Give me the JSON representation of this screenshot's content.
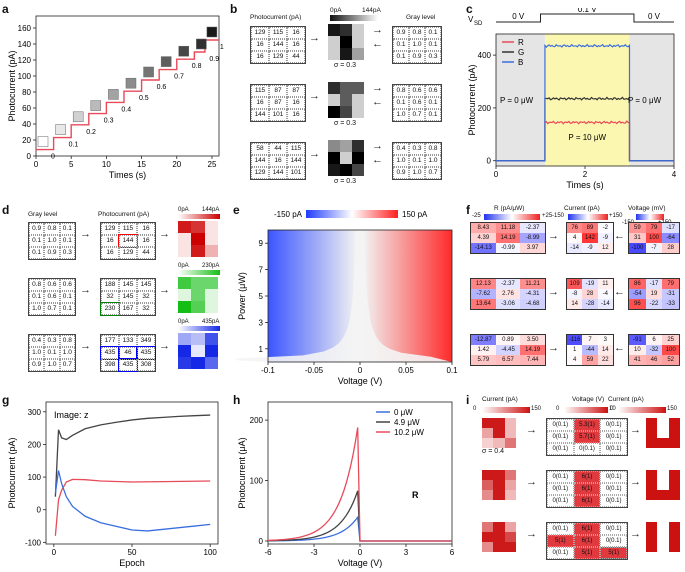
{
  "panels": {
    "a": {
      "label": "a",
      "chart_data": {
        "type": "line",
        "xlabel": "Times (s)",
        "ylabel": "Photocurrent (pA)",
        "xlim": [
          0,
          26
        ],
        "ylim": [
          0,
          175
        ],
        "xticks": [
          0,
          5,
          10,
          15,
          20,
          25
        ],
        "yticks": [
          0,
          20,
          40,
          60,
          80,
          100,
          120,
          140,
          160
        ],
        "steps": [
          {
            "t0": 0,
            "t1": 2.5,
            "y": 8,
            "label": "0"
          },
          {
            "t0": 2.5,
            "t1": 5,
            "y": 23,
            "label": "0.1"
          },
          {
            "t0": 5,
            "t1": 7.5,
            "y": 39,
            "label": "0.2"
          },
          {
            "t0": 7.5,
            "t1": 10,
            "y": 53,
            "label": "0.3"
          },
          {
            "t0": 10,
            "t1": 12.5,
            "y": 67,
            "label": "0.4"
          },
          {
            "t0": 12.5,
            "t1": 15,
            "y": 81,
            "label": "0.5"
          },
          {
            "t0": 15,
            "t1": 17.5,
            "y": 95,
            "label": "0.6"
          },
          {
            "t0": 17.5,
            "t1": 20,
            "y": 108,
            "label": "0.7"
          },
          {
            "t0": 20,
            "t1": 22.5,
            "y": 121,
            "label": "0.8"
          },
          {
            "t0": 22.5,
            "t1": 24,
            "y": 130,
            "label": "0.9"
          },
          {
            "t0": 24,
            "t1": 26,
            "y": 145,
            "label": "1"
          }
        ],
        "color": "#e84a5a"
      }
    },
    "b": {
      "label": "b",
      "col_photocurrent": "Photocurrent (pA)",
      "col_gray": "Gray level",
      "cb_min": "0pA",
      "cb_max": "144pA",
      "sigma": "σ = 0.3",
      "rows": [
        {
          "pc": [
            "129",
            "115",
            "16",
            "16",
            "144",
            "16",
            "16",
            "129",
            "44"
          ],
          "gl": [
            "0.9",
            "0.8",
            "0.1",
            "0.1",
            "1.0",
            "0.1",
            "0.1",
            "0.9",
            "0.3"
          ]
        },
        {
          "pc": [
            "115",
            "87",
            "87",
            "16",
            "87",
            "16",
            "144",
            "101",
            "16"
          ],
          "gl": [
            "0.8",
            "0.6",
            "0.6",
            "0.1",
            "0.6",
            "0.1",
            "1.0",
            "0.7",
            "0.1"
          ]
        },
        {
          "pc": [
            "58",
            "44",
            "115",
            "144",
            "16",
            "144",
            "129",
            "144",
            "101"
          ],
          "gl": [
            "0.4",
            "0.3",
            "0.8",
            "1.0",
            "0.1",
            "1.0",
            "0.9",
            "1.0",
            "0.7"
          ]
        }
      ]
    },
    "c": {
      "label": "c",
      "vsd_label": "V",
      "vsd_sub": "SD",
      "v_left": "0 V",
      "v_mid": "0.1 V",
      "v_right": "0 V",
      "p_off_left": "P = 0 μW",
      "p_off_right": "P = 0 μW",
      "p_on": "P = 10 μW",
      "chart_data": {
        "type": "line",
        "xlabel": "Times (s)",
        "ylabel": "Photocurrent (pA)",
        "xlim": [
          0,
          4
        ],
        "ylim": [
          -20,
          480
        ],
        "xticks": [
          0,
          2,
          4
        ],
        "yticks": [
          0,
          200,
          400
        ],
        "on_window": [
          1.1,
          3.0
        ],
        "series": [
          {
            "name": "R",
            "color": "#e84a5a",
            "on_value": 145
          },
          {
            "name": "G",
            "color": "#333333",
            "on_value": 235
          },
          {
            "name": "B",
            "color": "#3a6fe0",
            "on_value": 435
          }
        ]
      }
    },
    "d": {
      "label": "d",
      "col_gray": "Gray level",
      "col_pc": "Photocurrent (pA)",
      "rows": [
        {
          "gl": [
            "0.9",
            "0.8",
            "0.1",
            "0.1",
            "1.0",
            "0.1",
            "0.1",
            "0.9",
            "0.3"
          ],
          "pc": [
            "129",
            "115",
            "16",
            "16",
            "144",
            "16",
            "16",
            "129",
            "44"
          ],
          "cb_min": "0pA",
          "cb_max": "144pA"
        },
        {
          "gl": [
            "0.8",
            "0.6",
            "0.6",
            "0.1",
            "0.6",
            "0.1",
            "1.0",
            "0.7",
            "0.1"
          ],
          "pc": [
            "188",
            "145",
            "145",
            "32",
            "145",
            "32",
            "230",
            "167",
            "32"
          ],
          "cb_min": "0pA",
          "cb_max": "230pA"
        },
        {
          "gl": [
            "0.4",
            "0.3",
            "0.8",
            "1.0",
            "0.1",
            "1.0",
            "0.9",
            "1.0",
            "0.7"
          ],
          "pc": [
            "177",
            "133",
            "349",
            "435",
            "46",
            "435",
            "398",
            "435",
            "308"
          ],
          "cb_min": "0pA",
          "cb_max": "435pA"
        }
      ]
    },
    "e": {
      "label": "e",
      "cb_left": "-150 pA",
      "cb_right": "150 pA",
      "chart_data": {
        "type": "heatmap",
        "xlabel": "Voltage (V)",
        "ylabel": "Power (μW)",
        "xlim": [
          -0.1,
          0.1
        ],
        "ylim": [
          0,
          10
        ],
        "xticks": [
          "-0.1",
          "-0.05",
          "0",
          "0.05",
          "0.1"
        ],
        "yticks": [
          "1",
          "3",
          "5",
          "7",
          "9"
        ],
        "zlim": [
          -150,
          150
        ]
      }
    },
    "f": {
      "label": "f",
      "r_title": "R (pA/μW)",
      "r_min": "-25",
      "r_max": "+25",
      "i_title": "Current (pA)",
      "i_min": "-150",
      "i_max": "+150",
      "v_title": "Voltage (mV)",
      "v_min": "-150",
      "v_max": "+150",
      "rows": [
        {
          "r": [
            "8.43",
            "11.18",
            "-2.37",
            "4.39",
            "14.19",
            "-8.99",
            "-14.13",
            "-0.99",
            "3.97"
          ],
          "i": [
            "76",
            "89",
            "-2",
            "4",
            "142",
            "-9",
            "-14",
            "-9",
            "12"
          ],
          "v": [
            "59",
            "79",
            "-17",
            "31",
            "100",
            "-64",
            "-100",
            "-7",
            "28"
          ]
        },
        {
          "r": [
            "12.13",
            "-2.37",
            "11.21",
            "-7.62",
            "2.76",
            "-4.31",
            "13.64",
            "-3.06",
            "-4.68"
          ],
          "i": [
            "109",
            "-19",
            "11",
            "-8",
            "28",
            "-4",
            "14",
            "-28",
            "-14"
          ],
          "v": [
            "86",
            "-17",
            "79",
            "-54",
            "19",
            "-31",
            "96",
            "-22",
            "-33"
          ]
        },
        {
          "r": [
            "-12.87",
            "0.89",
            "3.50",
            "1.42",
            "-4.45",
            "14.19",
            "5.79",
            "6.57",
            "7.44"
          ],
          "i": [
            "-116",
            "7",
            "3",
            "1",
            "-44",
            "14",
            "4",
            "59",
            "22"
          ],
          "v": [
            "-91",
            "6",
            "25",
            "10",
            "-32",
            "100",
            "41",
            "46",
            "52"
          ]
        }
      ]
    },
    "g": {
      "label": "g",
      "annotation": "Image: z",
      "chart_data": {
        "type": "line",
        "xlabel": "Epoch",
        "ylabel": "Photocurrent (pA)",
        "xlim": [
          -5,
          105
        ],
        "ylim": [
          -105,
          330
        ],
        "xticks": [
          0,
          50,
          100
        ],
        "yticks": [
          -100,
          0,
          100,
          200,
          300
        ],
        "series": [
          {
            "name": "black",
            "color": "#444444",
            "x": [
              1,
              3,
              5,
              8,
              12,
              20,
              30,
              40,
              50,
              60,
              70,
              80,
              90,
              100
            ],
            "y": [
              40,
              245,
              220,
              215,
              228,
              248,
              260,
              268,
              275,
              280,
              283,
              286,
              288,
              290
            ]
          },
          {
            "name": "red",
            "color": "#e84a5a",
            "x": [
              1,
              3,
              5,
              8,
              12,
              20,
              30,
              50,
              70,
              100
            ],
            "y": [
              -80,
              30,
              60,
              85,
              93,
              92,
              88,
              85,
              86,
              88
            ]
          },
          {
            "name": "blue",
            "color": "#3a6fe0",
            "x": [
              1,
              3,
              5,
              8,
              12,
              20,
              30,
              50,
              60,
              70,
              80,
              90,
              100
            ],
            "y": [
              50,
              120,
              80,
              40,
              10,
              -20,
              -40,
              -62,
              -65,
              -60,
              -55,
              -50,
              -45
            ]
          }
        ]
      }
    },
    "h": {
      "label": "h",
      "annotation": "R",
      "chart_data": {
        "type": "line",
        "xlabel": "Voltage (V)",
        "ylabel": "Photocurrent (μA)",
        "xlim": [
          -6,
          6
        ],
        "ylim": [
          -5,
          230
        ],
        "xticks": [
          -6,
          -3,
          0,
          3,
          6
        ],
        "yticks": [
          0,
          100,
          200
        ],
        "series": [
          {
            "name": "0 μW",
            "color": "#3a6fe0",
            "scale": 45
          },
          {
            "name": "4.9 μW",
            "color": "#444444",
            "scale": 95
          },
          {
            "name": "10.2 μW",
            "color": "#e84a5a",
            "scale": 215
          }
        ]
      }
    },
    "i": {
      "label": "i",
      "c_title": "Current (pA)",
      "c_min": "0",
      "c_max": "150",
      "v_title": "Voltage (V)",
      "v_min": "0",
      "v_max": "10",
      "sigma": "σ = 0.4",
      "rows": [
        {
          "v": [
            "0(0.1)",
            "5.3(1)",
            "0(0.1)",
            "0(0.1)",
            "5.7(1)",
            "0(0.1)",
            "0(0.1)",
            "0(0.1)",
            "0(0.1)"
          ]
        },
        {
          "v": [
            "0(0.1)",
            "6(1)",
            "0(0.1)",
            "0(0.1)",
            "6(1)",
            "0(0.1)",
            "0(0.1)",
            "6(1)",
            "0(0.1)"
          ]
        },
        {
          "v": [
            "0(0.1)",
            "6(1)",
            "0(0.1)",
            "5(1)",
            "6(1)",
            "0(0.1)",
            "0(0.1)",
            "5(1)",
            "5(1)"
          ]
        }
      ]
    }
  }
}
